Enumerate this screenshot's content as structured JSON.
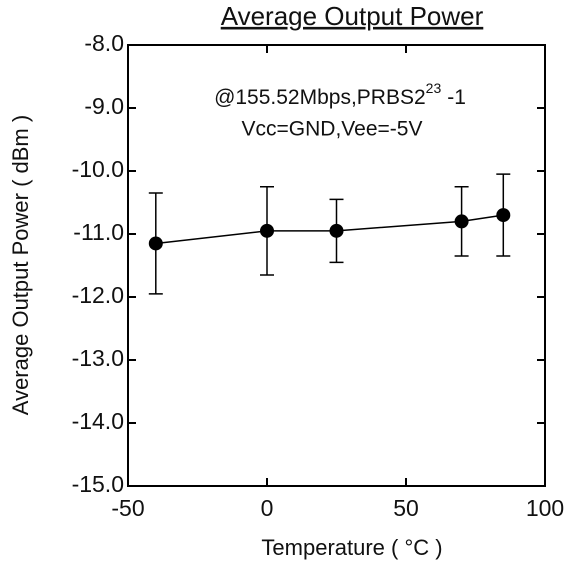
{
  "chart_data": {
    "type": "errorbar",
    "title": "Average Output Power",
    "annotation": [
      "@155.52Mbps,PRBS2",
      "23",
      "-1"
    ],
    "annotation2": "Vcc=GND,Vee=-5V",
    "xlabel": "Temperature ( °C )",
    "ylabel": "Average Output Power ( dBm )",
    "x": [
      -40,
      0,
      25,
      70,
      85
    ],
    "series": [
      {
        "color": "#000000",
        "values": [
          -11.15,
          -10.95,
          -10.95,
          -10.8,
          -10.7
        ],
        "errors": [
          0.8,
          0.7,
          0.5,
          0.55,
          0.65
        ]
      }
    ],
    "xlim": [
      -50,
      100
    ],
    "xticks": [
      -50,
      0,
      50,
      100
    ],
    "ylim": [
      -15,
      -8
    ],
    "yticks": [
      {
        "value": -15,
        "label": "-15.0"
      },
      {
        "value": -14,
        "label": "-14.0"
      },
      {
        "value": -13,
        "label": "-13.0"
      },
      {
        "value": -12,
        "label": "-12.0"
      },
      {
        "value": -11,
        "label": "-11.0"
      },
      {
        "value": -10,
        "label": "-10.0"
      },
      {
        "value": -9,
        "label": "-9.0"
      },
      {
        "value": -8,
        "label": "-8.0"
      }
    ]
  }
}
